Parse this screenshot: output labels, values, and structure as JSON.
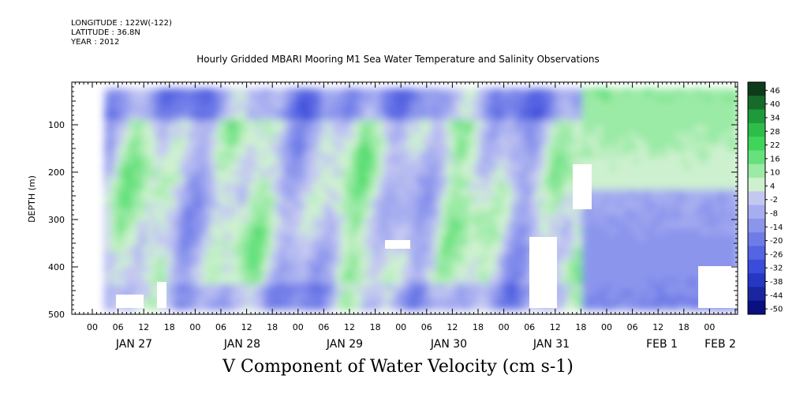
{
  "header": {
    "longitude": "LONGITUDE : 122W(-122)",
    "latitude": "LATITUDE : 36.8N",
    "year": "YEAR : 2012"
  },
  "chart_data": {
    "type": "heatmap",
    "title": "Hourly Gridded MBARI Mooring M1 Sea Water Temperature and Salinity Observations",
    "variable_title": "V Component of Water Velocity (cm s-1)",
    "ylabel": "DEPTH (m)",
    "ylim": [
      500,
      10
    ],
    "y_inverted": true,
    "y_ticks": [
      100,
      200,
      300,
      400,
      500
    ],
    "hour_ticks": [
      "00",
      "06",
      "12",
      "18",
      "00",
      "06",
      "12",
      "18",
      "00",
      "06",
      "12",
      "18",
      "00",
      "06",
      "12",
      "18",
      "00",
      "06",
      "12",
      "18",
      "00",
      "06",
      "12",
      "18",
      "00"
    ],
    "date_labels": [
      "JAN 27",
      "JAN 28",
      "JAN 29",
      "JAN 30",
      "JAN 31",
      "FEB  1",
      "FEB  2"
    ],
    "colorbar": {
      "range": [
        -50,
        46
      ],
      "levels": [
        "46",
        "40",
        "34",
        "28",
        "22",
        "16",
        "10",
        "4",
        "-2",
        "-8",
        "-14",
        "-20",
        "-26",
        "-32",
        "-38",
        "-44",
        "-50"
      ],
      "colors": [
        "#0e3b1a",
        "#166b2a",
        "#1f9a3a",
        "#2fbd4a",
        "#3fd55a",
        "#66e17d",
        "#9beaa6",
        "#cdf1cf",
        "#c4c8f1",
        "#a7aef0",
        "#8b95ec",
        "#6f7ce8",
        "#5564e2",
        "#3a4cda",
        "#2637c4",
        "#1a26a0",
        "#0a1080"
      ]
    },
    "series": [],
    "grid": false
  }
}
